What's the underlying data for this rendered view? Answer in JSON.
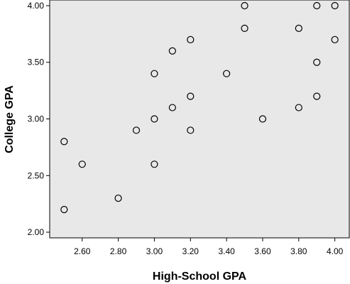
{
  "chart_data": {
    "type": "scatter",
    "xlabel": "High-School GPA",
    "ylabel": "College GPA",
    "xlim": [
      2.42,
      4.08
    ],
    "ylim": [
      1.95,
      4.05
    ],
    "xticks": [
      2.6,
      2.8,
      3.0,
      3.2,
      3.4,
      3.6,
      3.8,
      4.0
    ],
    "xtick_labels": [
      "2.60",
      "2.80",
      "3.00",
      "3.20",
      "3.40",
      "3.60",
      "3.80",
      "4.00"
    ],
    "yticks": [
      2.0,
      2.5,
      3.0,
      3.5,
      4.0
    ],
    "ytick_labels": [
      "2.00",
      "2.50",
      "3.00",
      "3.50",
      "4.00"
    ],
    "grid": false,
    "marker": "open-circle",
    "plot_background": "#e8e8e8",
    "marker_color": "#000000",
    "points": [
      {
        "x": 2.5,
        "y": 2.8
      },
      {
        "x": 2.5,
        "y": 2.2
      },
      {
        "x": 2.6,
        "y": 2.6
      },
      {
        "x": 2.8,
        "y": 2.3
      },
      {
        "x": 2.9,
        "y": 2.9
      },
      {
        "x": 3.0,
        "y": 3.4
      },
      {
        "x": 3.0,
        "y": 3.0
      },
      {
        "x": 3.0,
        "y": 2.6
      },
      {
        "x": 3.1,
        "y": 3.6
      },
      {
        "x": 3.1,
        "y": 3.1
      },
      {
        "x": 3.2,
        "y": 3.7
      },
      {
        "x": 3.2,
        "y": 3.2
      },
      {
        "x": 3.2,
        "y": 2.9
      },
      {
        "x": 3.4,
        "y": 3.4
      },
      {
        "x": 3.5,
        "y": 4.0
      },
      {
        "x": 3.5,
        "y": 3.8
      },
      {
        "x": 3.6,
        "y": 3.0
      },
      {
        "x": 3.8,
        "y": 3.8
      },
      {
        "x": 3.8,
        "y": 3.1
      },
      {
        "x": 3.9,
        "y": 4.0
      },
      {
        "x": 3.9,
        "y": 3.5
      },
      {
        "x": 3.9,
        "y": 3.2
      },
      {
        "x": 4.0,
        "y": 4.0
      },
      {
        "x": 4.0,
        "y": 3.7
      }
    ]
  }
}
